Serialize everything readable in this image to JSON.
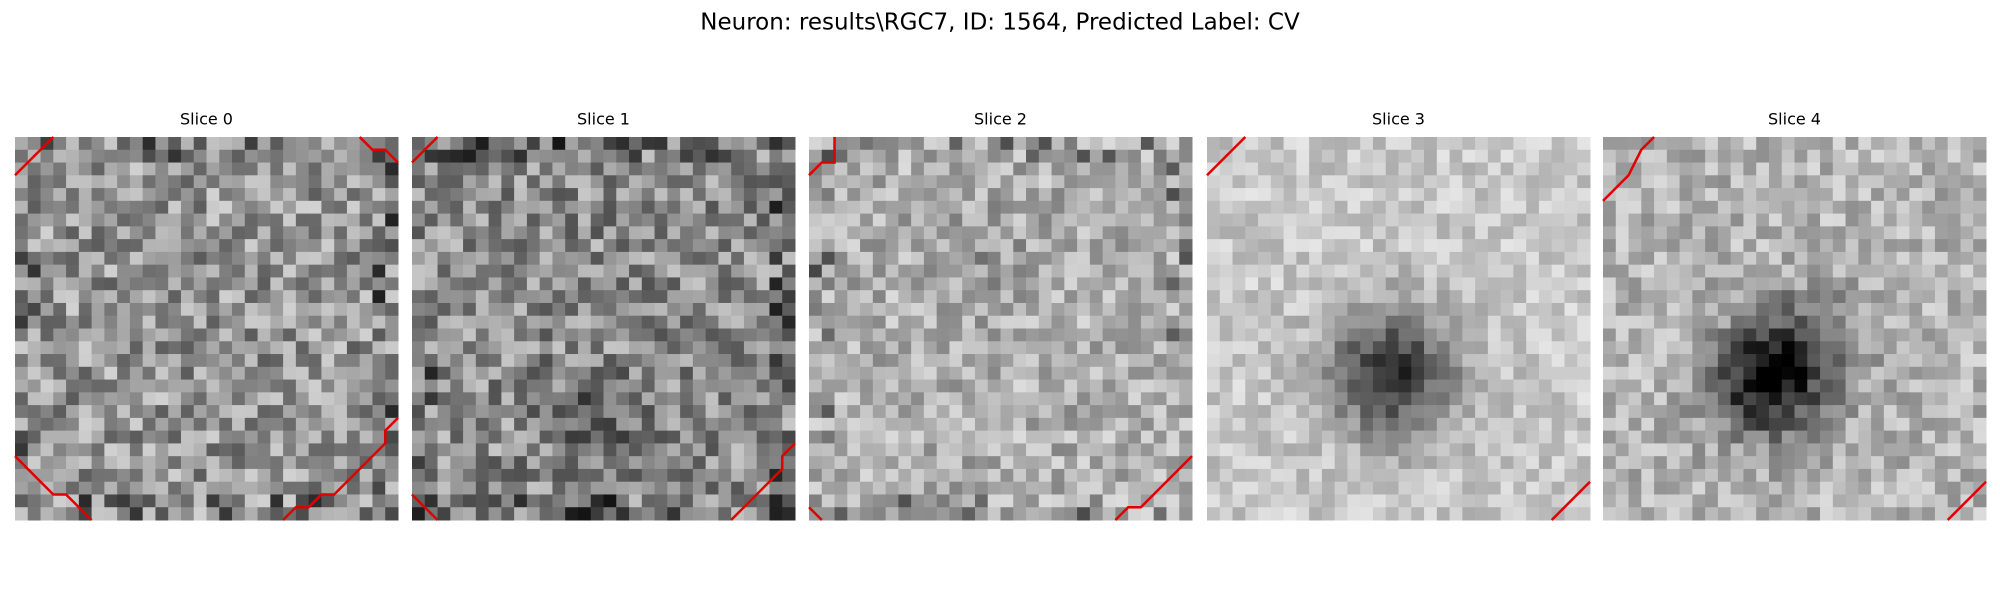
{
  "header": {
    "title": "Neuron: results\\RGC7, ID: 1564, Predicted Label: CV"
  },
  "panels": [
    {
      "title": "Slice 0"
    },
    {
      "title": "Slice 1"
    },
    {
      "title": "Slice 2"
    },
    {
      "title": "Slice 3"
    },
    {
      "title": "Slice 4"
    }
  ]
}
